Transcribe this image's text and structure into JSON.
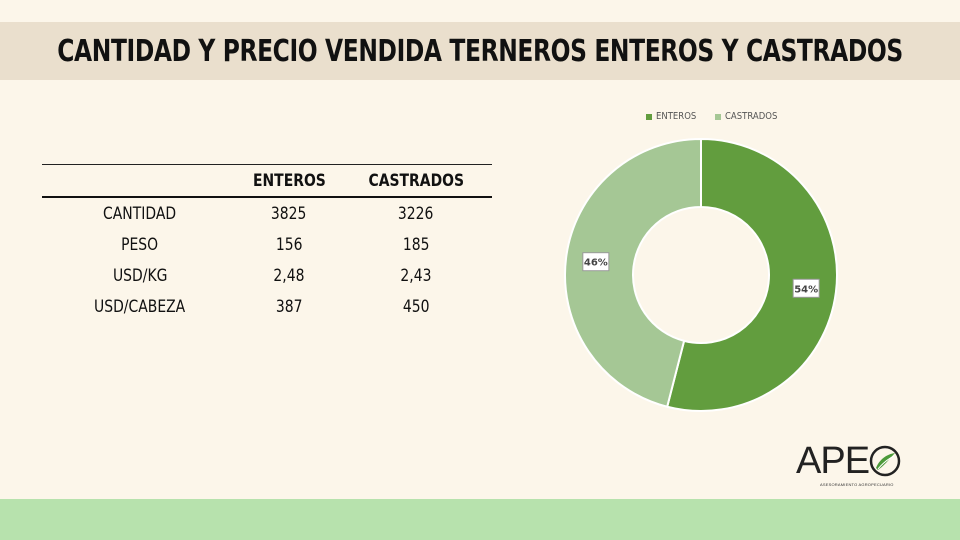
{
  "title": "CANTIDAD Y PRECIO VENDIDA TERNEROS ENTEROS Y CASTRADOS",
  "table": {
    "headers": [
      "",
      "ENTEROS",
      "CASTRADOS"
    ],
    "rows": [
      {
        "label": "CANTIDAD",
        "enteros": "3825",
        "castrados": "3226"
      },
      {
        "label": "PESO",
        "enteros": "156",
        "castrados": "185"
      },
      {
        "label": "USD/KG",
        "enteros": "2,48",
        "castrados": "2,43"
      },
      {
        "label": "USD/CABEZA",
        "enteros": "387",
        "castrados": "450"
      }
    ]
  },
  "chart_data": {
    "type": "pie",
    "variant": "donut",
    "title": "",
    "legend_position": "top",
    "slices": [
      {
        "label": "ENTEROS",
        "value": 54,
        "display": "54%",
        "color": "#629d3e"
      },
      {
        "label": "CASTRADOS",
        "value": 46,
        "display": "46%",
        "color": "#a5c795"
      }
    ]
  },
  "logo": {
    "text": "APE",
    "subtitle": "ASESORAMIENTO AGROPECUARIO"
  },
  "colors": {
    "background": "#fcf6ea",
    "title_bar": "#eadfcd",
    "footer_bar": "#b7e2ad"
  }
}
